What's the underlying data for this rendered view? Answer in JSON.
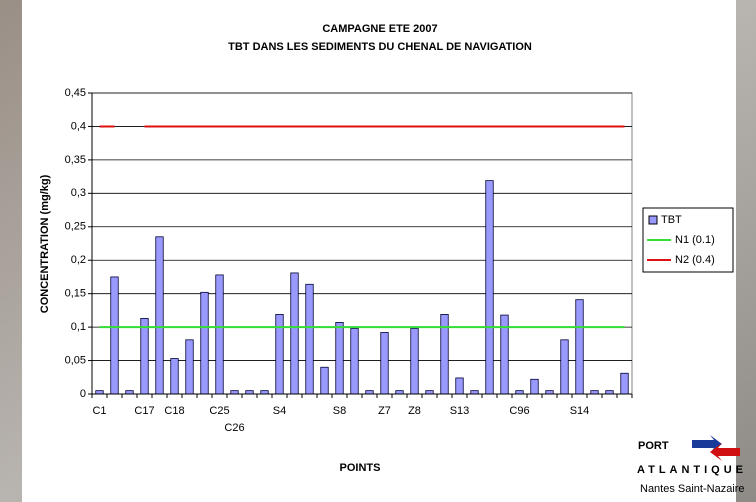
{
  "chart_data": {
    "type": "bar",
    "title": "CAMPAGNE ETE 2007",
    "subtitle": "TBT DANS LES SEDIMENTS DU CHENAL DE NAVIGATION",
    "y_label": "CONCENTRATION (mg/kg)",
    "x_label": "POINTS",
    "categories": [
      "C1",
      null,
      null,
      "C17",
      null,
      "C18",
      null,
      null,
      "C25",
      "C26",
      null,
      null,
      "S4",
      null,
      null,
      null,
      "S8",
      null,
      null,
      "Z7",
      null,
      "Z8",
      null,
      null,
      "S13",
      null,
      null,
      null,
      "C96",
      null,
      null,
      null,
      "S14",
      null,
      null,
      null
    ],
    "series": [
      {
        "name": "TBT",
        "type": "bar",
        "color": "#9999ff",
        "values": [
          0.005,
          0.175,
          0.005,
          0.113,
          0.235,
          0.053,
          0.081,
          0.152,
          0.178,
          0.005,
          0.005,
          0.005,
          0.119,
          0.181,
          0.164,
          0.04,
          0.107,
          0.098,
          0.005,
          0.092,
          0.005,
          0.098,
          0.005,
          0.119,
          0.024,
          0.005,
          0.319,
          0.118,
          0.005,
          0.022,
          0.005,
          0.081,
          0.141,
          0.005,
          0.005,
          0.031
        ]
      },
      {
        "name": "N1 (0.1)",
        "type": "line",
        "color": "#33dd33",
        "values": [
          0.1,
          0.1,
          0.1,
          0.1,
          0.1,
          0.1,
          0.1,
          0.1,
          0.1,
          0.1,
          0.1,
          0.1,
          0.1,
          0.1,
          0.1,
          0.1,
          0.1,
          0.1,
          0.1,
          0.1,
          0.1,
          0.1,
          0.1,
          0.1,
          0.1,
          0.1,
          0.1,
          0.1,
          0.1,
          0.1,
          0.1,
          0.1,
          0.1,
          0.1,
          0.1,
          0.1
        ]
      },
      {
        "name": "N2 (0.4)",
        "type": "line",
        "color": "#dd1111",
        "values": [
          0.4,
          0.4,
          null,
          0.4,
          0.4,
          0.4,
          0.4,
          0.4,
          0.4,
          0.4,
          0.4,
          0.4,
          0.4,
          0.4,
          0.4,
          0.4,
          0.4,
          0.4,
          0.4,
          0.4,
          0.4,
          0.4,
          0.4,
          0.4,
          0.4,
          0.4,
          0.4,
          0.4,
          0.4,
          0.4,
          0.4,
          0.4,
          0.4,
          0.4,
          0.4,
          0.4
        ]
      }
    ],
    "ylim": [
      0,
      0.45
    ],
    "yticks": [
      0,
      {
        "value": 0.05,
        "label": "0,05"
      },
      {
        "value": 0.1,
        "label": "0,1"
      },
      {
        "value": 0.15,
        "label": "0,15"
      },
      {
        "value": 0.2,
        "label": "0,2"
      },
      {
        "value": 0.25,
        "label": "0,25"
      },
      {
        "value": 0.3,
        "label": "0,3"
      },
      {
        "value": 0.35,
        "label": "0,35"
      },
      {
        "value": 0.4,
        "label": "0,4"
      },
      {
        "value": 0.45,
        "label": "0,45"
      }
    ],
    "grid": true,
    "legend": "right"
  },
  "logo": {
    "line1": "PORT",
    "line2": "ATLANTIQUE",
    "line3": "Nantes Saint-Nazaire"
  }
}
